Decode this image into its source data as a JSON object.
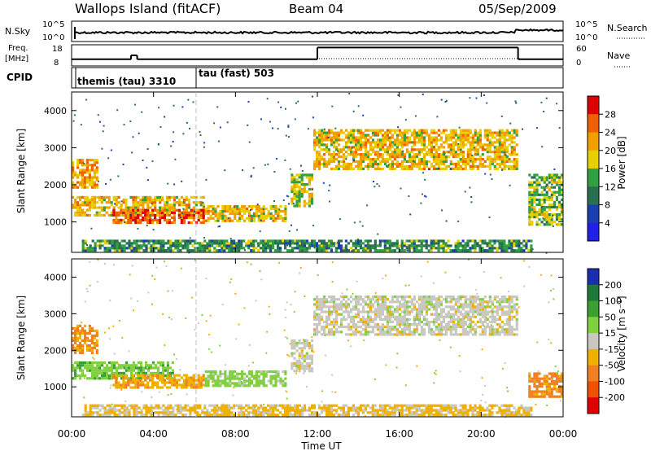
{
  "header": {
    "station": "Wallops Island (fitACF)",
    "beam": "Beam 04",
    "date": "05/Sep/2009"
  },
  "strips": {
    "nsky_label": "N.Sky",
    "nsky_ticks": [
      "10^5",
      "10^0"
    ],
    "nsearch_label": "N.Search",
    "freq_label_line1": "Freq.",
    "freq_label_line2": "[MHz]",
    "freq_ticks": [
      "18",
      "8"
    ],
    "nave_ticks": [
      "60",
      "0"
    ],
    "nave_label": "Nave",
    "cpid_label": "CPID",
    "cpid_segments": [
      {
        "name": "themis (tau) 3310",
        "start_hour": 0
      },
      {
        "name": "tau (fast) 503",
        "start_hour": 6
      }
    ]
  },
  "axes": {
    "ylabel": "Slant Range [km]",
    "yticks": [
      "1000",
      "2000",
      "3000",
      "4000"
    ],
    "xticks": [
      "00:00",
      "04:00",
      "08:00",
      "12:00",
      "16:00",
      "20:00",
      "00:00"
    ],
    "xlabel": "Time UT"
  },
  "colorbars": {
    "power": {
      "label": "Power [dB]",
      "ticks": [
        "28",
        "24",
        "20",
        "16",
        "12",
        "8",
        "4"
      ],
      "colors": [
        "#e00000",
        "#f06000",
        "#f0a000",
        "#e8d000",
        "#30a040",
        "#2a7050",
        "#1a3fb0",
        "#2020e8"
      ]
    },
    "velocity": {
      "label": "Velocity [m s⁻¹]",
      "ticks": [
        "200",
        "100",
        "50",
        "15",
        "-15",
        "-50",
        "-100",
        "-200"
      ],
      "colors": [
        "#1a2fb0",
        "#1f7a3a",
        "#3aa030",
        "#80d040",
        "#c8c8c0",
        "#f0b000",
        "#f08020",
        "#f05000",
        "#e00000"
      ]
    }
  },
  "chart_data": {
    "type": "heatmap",
    "x_range_hours": [
      0,
      24
    ],
    "y_range_km": [
      180,
      4500
    ],
    "panels": [
      {
        "panel": "power",
        "regions": [
          {
            "t0": 0.0,
            "t1": 1.3,
            "r0": 1900,
            "r1": 2700,
            "value": 20
          },
          {
            "t0": 0.0,
            "t1": 6.5,
            "r0": 1150,
            "r1": 1700,
            "value": 18
          },
          {
            "t0": 2.0,
            "t1": 6.5,
            "r0": 950,
            "r1": 1350,
            "value": 24
          },
          {
            "t0": 6.5,
            "t1": 10.5,
            "r0": 1000,
            "r1": 1450,
            "value": 18
          },
          {
            "t0": 0.5,
            "t1": 22.5,
            "r0": 200,
            "r1": 520,
            "value": 10
          },
          {
            "t0": 10.7,
            "t1": 11.8,
            "r0": 1400,
            "r1": 2300,
            "value": 16
          },
          {
            "t0": 11.8,
            "t1": 21.8,
            "r0": 2400,
            "r1": 3500,
            "value": 18
          },
          {
            "t0": 22.3,
            "t1": 24.0,
            "r0": 900,
            "r1": 2300,
            "value": 14
          }
        ]
      },
      {
        "panel": "velocity",
        "regions": [
          {
            "t0": 0.0,
            "t1": 1.3,
            "r0": 1900,
            "r1": 2700,
            "value": -60
          },
          {
            "t0": 0.0,
            "t1": 5.0,
            "r0": 1200,
            "r1": 1700,
            "value": 40
          },
          {
            "t0": 2.0,
            "t1": 6.5,
            "r0": 950,
            "r1": 1350,
            "value": -40
          },
          {
            "t0": 6.5,
            "t1": 10.5,
            "r0": 1000,
            "r1": 1450,
            "value": 30
          },
          {
            "t0": 0.5,
            "t1": 22.5,
            "r0": 200,
            "r1": 520,
            "value": -20
          },
          {
            "t0": 10.7,
            "t1": 11.8,
            "r0": 1400,
            "r1": 2300,
            "value": 0
          },
          {
            "t0": 11.8,
            "t1": 21.8,
            "r0": 2400,
            "r1": 3500,
            "value": 0
          },
          {
            "t0": 22.3,
            "t1": 24.0,
            "r0": 700,
            "r1": 1400,
            "value": -60
          }
        ]
      }
    ],
    "cpid_change_hour": 6,
    "freq_mhz": [
      {
        "t0": 0,
        "t1": 2.9,
        "value": 11
      },
      {
        "t0": 2.9,
        "t1": 3.2,
        "value": 13
      },
      {
        "t0": 3.2,
        "t1": 12,
        "value": 11
      },
      {
        "t0": 12,
        "t1": 21.8,
        "value": 17
      },
      {
        "t0": 21.8,
        "t1": 24,
        "value": 11
      }
    ]
  }
}
